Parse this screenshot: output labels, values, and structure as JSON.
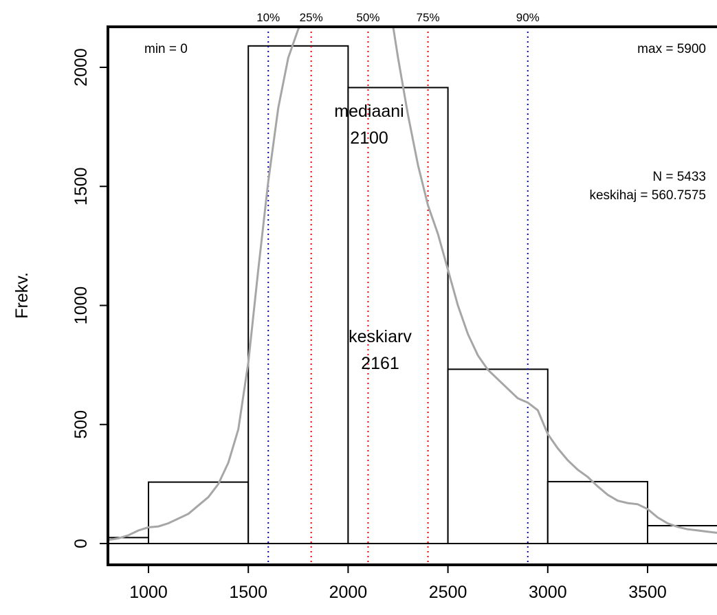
{
  "chart_data": {
    "type": "bar",
    "title": "",
    "xlabel": "",
    "ylabel": "Frekv.",
    "xlim": [
      800,
      3850
    ],
    "ylim": [
      -80,
      2180
    ],
    "x_ticks": [
      1000,
      1500,
      2000,
      2500,
      3000,
      3500
    ],
    "y_ticks": [
      0,
      500,
      1000,
      1500,
      2000
    ],
    "bins": [
      {
        "from": 500,
        "to": 1000,
        "count": 25
      },
      {
        "from": 1000,
        "to": 1500,
        "count": 258
      },
      {
        "from": 1500,
        "to": 2000,
        "count": 2090
      },
      {
        "from": 2000,
        "to": 2500,
        "count": 1915
      },
      {
        "from": 2500,
        "to": 3000,
        "count": 732
      },
      {
        "from": 3000,
        "to": 3500,
        "count": 260
      },
      {
        "from": 3500,
        "to": 4000,
        "count": 75
      }
    ],
    "density_curve": {
      "color": "#a6a6a6",
      "points": [
        [
          800,
          15
        ],
        [
          850,
          22
        ],
        [
          900,
          35
        ],
        [
          950,
          55
        ],
        [
          1000,
          68
        ],
        [
          1050,
          72
        ],
        [
          1100,
          85
        ],
        [
          1200,
          125
        ],
        [
          1300,
          195
        ],
        [
          1350,
          250
        ],
        [
          1400,
          340
        ],
        [
          1450,
          480
        ],
        [
          1500,
          760
        ],
        [
          1550,
          1150
        ],
        [
          1600,
          1520
        ],
        [
          1650,
          1830
        ],
        [
          1700,
          2040
        ],
        [
          1750,
          2160
        ],
        [
          1780,
          2200
        ],
        [
          2220,
          2200
        ],
        [
          2250,
          2040
        ],
        [
          2300,
          1800
        ],
        [
          2350,
          1590
        ],
        [
          2400,
          1420
        ],
        [
          2450,
          1300
        ],
        [
          2500,
          1150
        ],
        [
          2550,
          1000
        ],
        [
          2600,
          880
        ],
        [
          2650,
          790
        ],
        [
          2700,
          730
        ],
        [
          2750,
          690
        ],
        [
          2800,
          650
        ],
        [
          2850,
          610
        ],
        [
          2900,
          592
        ],
        [
          2950,
          560
        ],
        [
          3000,
          460
        ],
        [
          3050,
          400
        ],
        [
          3100,
          350
        ],
        [
          3150,
          310
        ],
        [
          3200,
          280
        ],
        [
          3250,
          240
        ],
        [
          3300,
          205
        ],
        [
          3350,
          180
        ],
        [
          3400,
          170
        ],
        [
          3450,
          165
        ],
        [
          3500,
          145
        ],
        [
          3550,
          110
        ],
        [
          3600,
          85
        ],
        [
          3650,
          70
        ],
        [
          3700,
          60
        ],
        [
          3750,
          55
        ],
        [
          3800,
          50
        ],
        [
          3850,
          45
        ]
      ]
    },
    "percentiles": [
      {
        "label": "10%",
        "value": 1600,
        "color": "#0000cc"
      },
      {
        "label": "25%",
        "value": 1815,
        "color": "#ee0000"
      },
      {
        "label": "50%",
        "value": 2100,
        "color": "#ee0000"
      },
      {
        "label": "75%",
        "value": 2400,
        "color": "#ee0000"
      },
      {
        "label": "90%",
        "value": 2900,
        "color": "#0000cc"
      }
    ],
    "annotations": {
      "min": "min = 0",
      "max": "max = 5900",
      "n": "N = 5433",
      "sd": "keskihaj = 560.7575",
      "median_label": "mediaani",
      "median_value": "2100",
      "mean_label": "keskiarv",
      "mean_value": "2161"
    },
    "grid": false
  }
}
